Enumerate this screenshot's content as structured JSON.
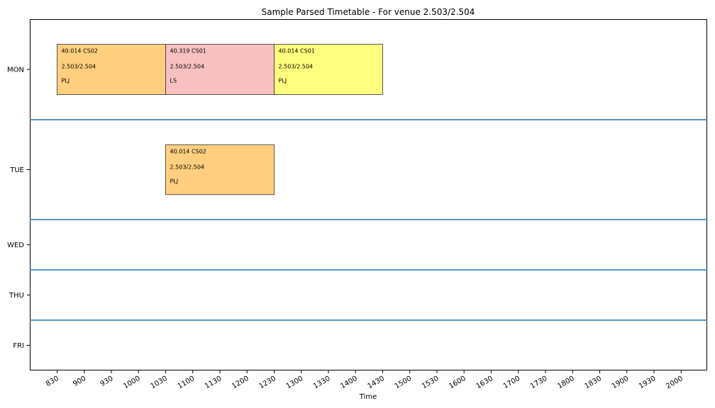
{
  "chart_data": {
    "type": "bar",
    "title": "Sample Parsed Timetable - For venue 2.503/2.504",
    "xlabel": "Time",
    "ylabel": "",
    "x_ticks": [
      "830",
      "900",
      "930",
      "1000",
      "1030",
      "1100",
      "1130",
      "1200",
      "1230",
      "1300",
      "1330",
      "1400",
      "1430",
      "1500",
      "1530",
      "1600",
      "1630",
      "1700",
      "1730",
      "1800",
      "1830",
      "1900",
      "1930",
      "2000"
    ],
    "xlim_ticks": [
      -1,
      24
    ],
    "days": [
      "MON",
      "TUE",
      "WED",
      "THU",
      "FRI"
    ],
    "grid": false,
    "colors": {
      "orange": "#ffcf7f",
      "pink": "#f8c0c0",
      "yellow": "#ffff7f",
      "separator": "#1f77b4",
      "edge": "#333333"
    },
    "blocks": [
      {
        "day": "MON",
        "start": "830",
        "end": "1030",
        "color": "orange",
        "lines": [
          "40.014 CS02",
          "2.503/2.504",
          "PLJ"
        ]
      },
      {
        "day": "MON",
        "start": "1030",
        "end": "1230",
        "color": "pink",
        "lines": [
          "40.319 CS01",
          "2.503/2.504",
          "LS"
        ]
      },
      {
        "day": "MON",
        "start": "1230",
        "end": "1430",
        "color": "yellow",
        "lines": [
          "40.014 CS01",
          "2.503/2.504",
          "PLJ"
        ]
      },
      {
        "day": "TUE",
        "start": "1030",
        "end": "1230",
        "color": "orange",
        "lines": [
          "40.014 CS02",
          "2.503/2.504",
          "PLJ"
        ]
      }
    ]
  }
}
